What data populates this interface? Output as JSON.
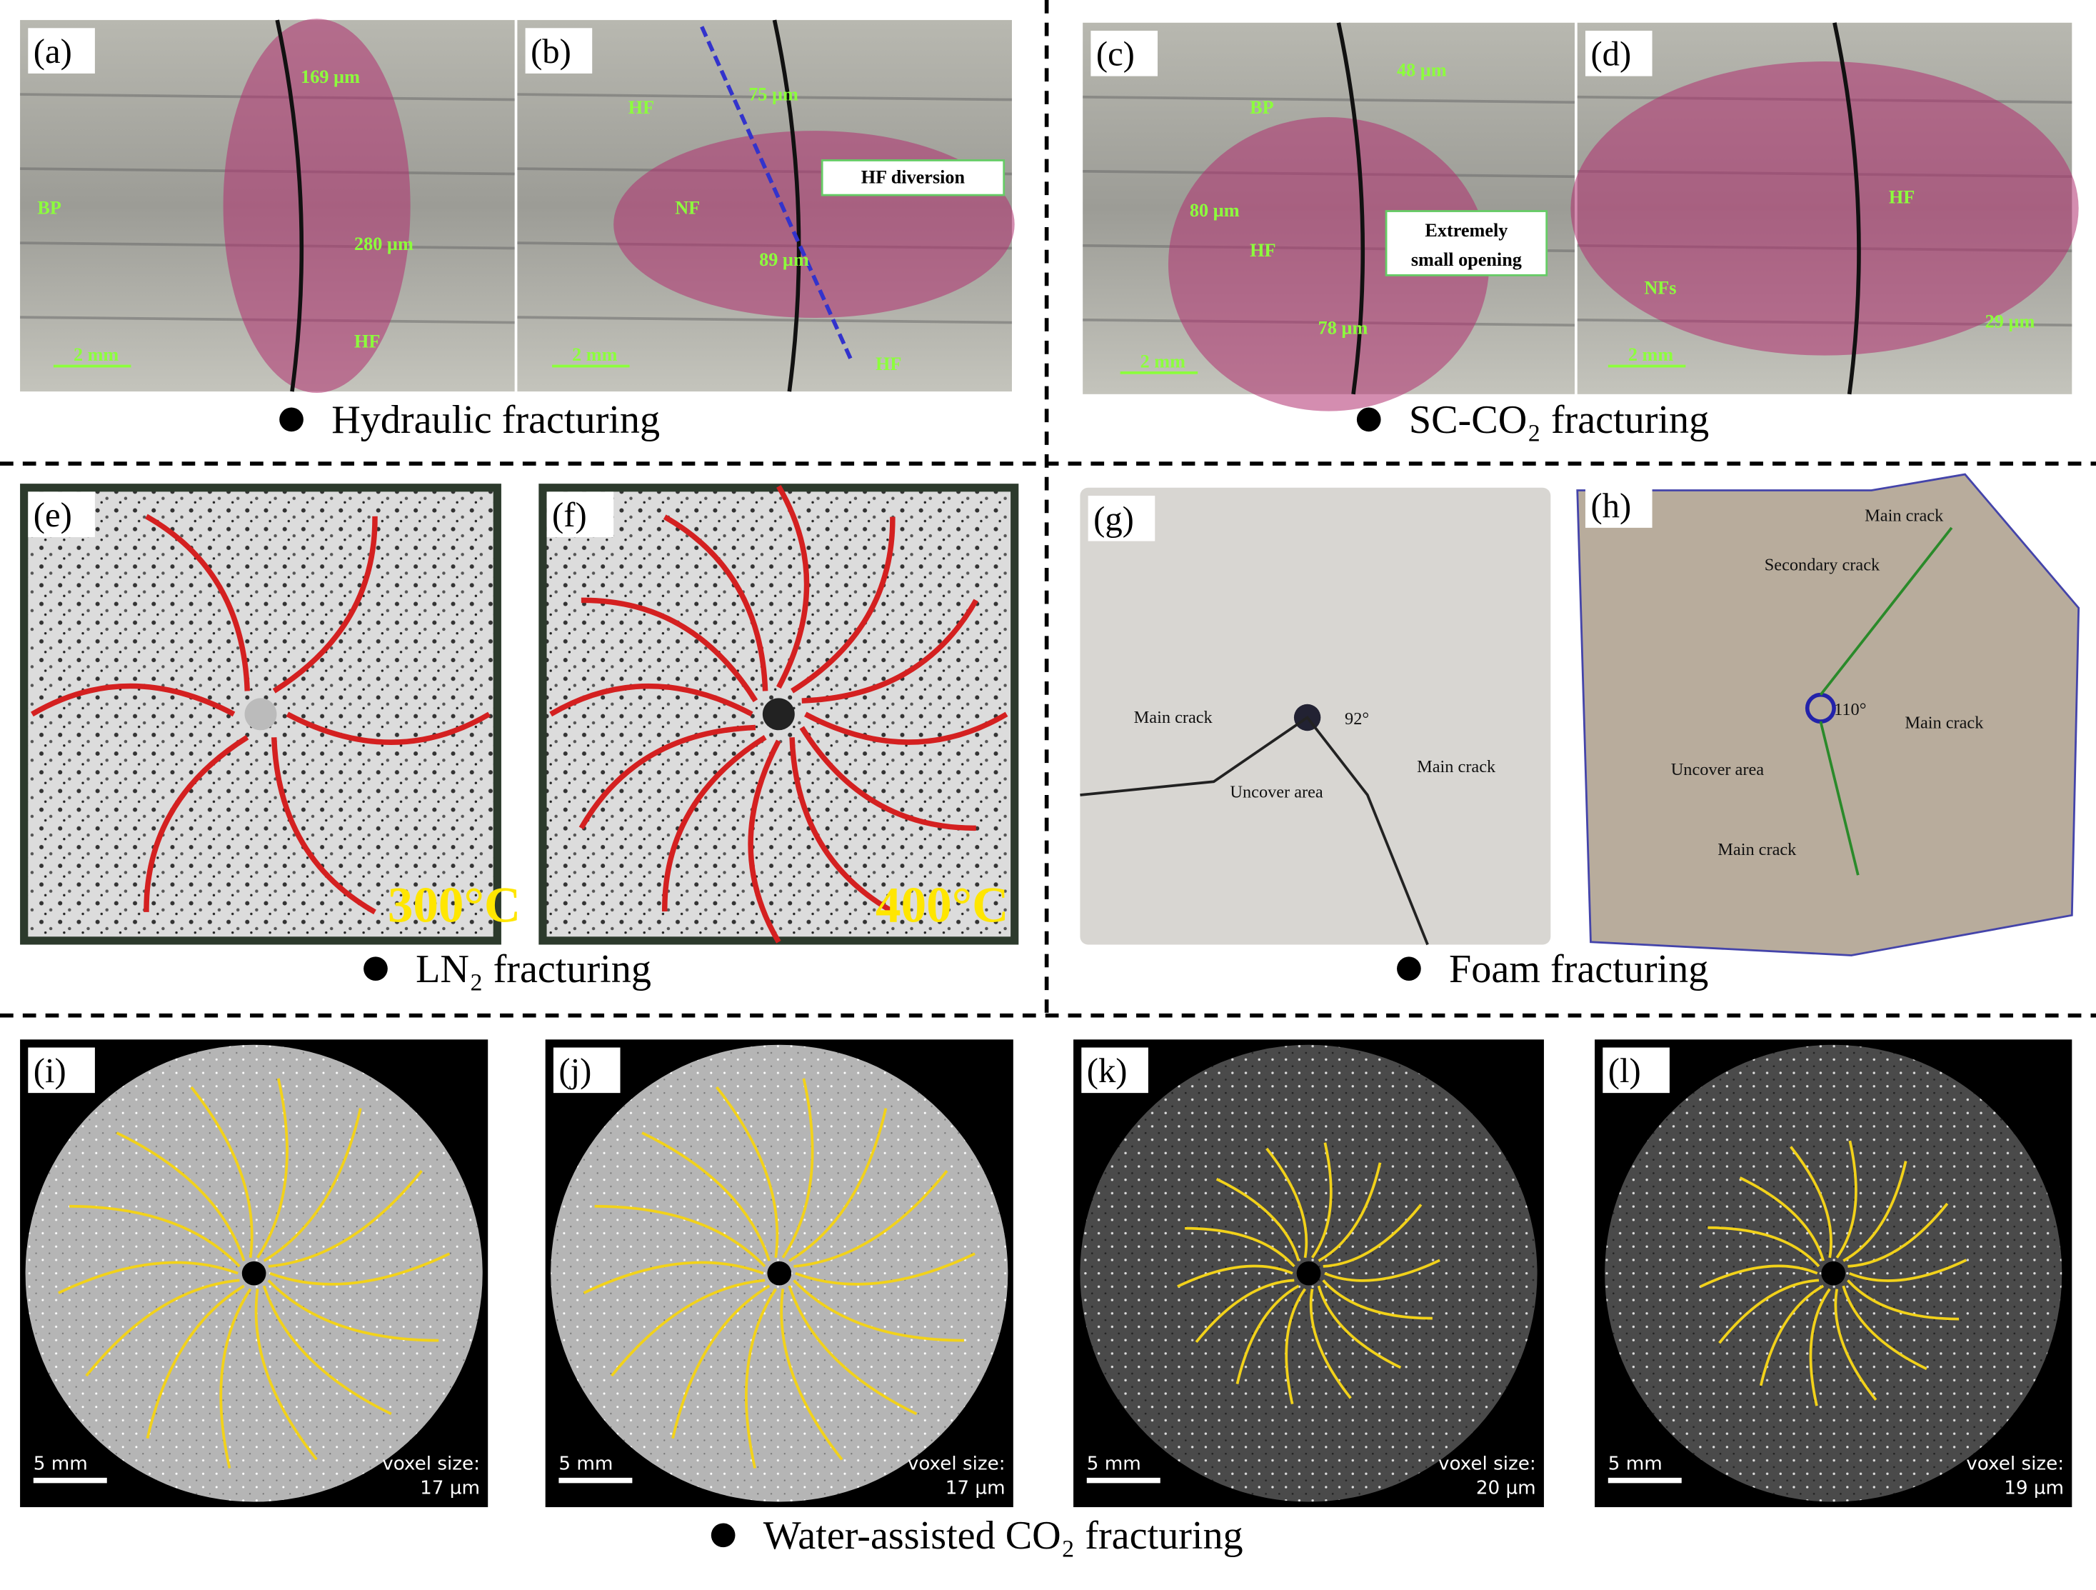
{
  "sections": [
    {
      "caption": "Hydraulic fracturing",
      "panels": [
        {
          "label": "(a)",
          "annotations": [
            "169 µm",
            "280 µm",
            "BP",
            "HF",
            "2 mm"
          ]
        },
        {
          "label": "(b)",
          "annotations": [
            "HF",
            "75 µm",
            "NF",
            "89 µm",
            "HF diversion",
            "HF",
            "2 mm"
          ]
        }
      ]
    },
    {
      "caption": "SC-CO₂ fracturing",
      "panels": [
        {
          "label": "(c)",
          "annotations": [
            "48 µm",
            "BP",
            "80 µm",
            "Extremely",
            "small opening",
            "HF",
            "78 µm",
            "2 mm"
          ]
        },
        {
          "label": "(d)",
          "annotations": [
            "HF",
            "NFs",
            "29 µm",
            "2 mm"
          ]
        }
      ]
    },
    {
      "caption": "LN₂ fracturing",
      "panels": [
        {
          "label": "(e)",
          "annotations": [
            "300°C"
          ]
        },
        {
          "label": "(f)",
          "annotations": [
            "400°C"
          ]
        }
      ]
    },
    {
      "caption": "Foam fracturing",
      "panels": [
        {
          "label": "(g)",
          "annotations": [
            "Main crack",
            "92°",
            "Uncover area",
            "Main crack"
          ]
        },
        {
          "label": "(h)",
          "annotations": [
            "Main crack",
            "Secondary crack",
            "110°",
            "Main crack",
            "Uncover area",
            "Main crack"
          ]
        }
      ]
    },
    {
      "caption": "Water-assisted CO₂ fracturing",
      "panels": [
        {
          "label": "(i)",
          "annotations": [
            "5 mm",
            "voxel size:",
            "17 µm"
          ]
        },
        {
          "label": "(j)",
          "annotations": [
            "5 mm",
            "voxel size:",
            "17 µm"
          ]
        },
        {
          "label": "(k)",
          "annotations": [
            "5 mm",
            "voxel size:",
            "20 µm"
          ]
        },
        {
          "label": "(l)",
          "annotations": [
            "5 mm",
            "voxel size:",
            "19 µm"
          ]
        }
      ]
    }
  ]
}
